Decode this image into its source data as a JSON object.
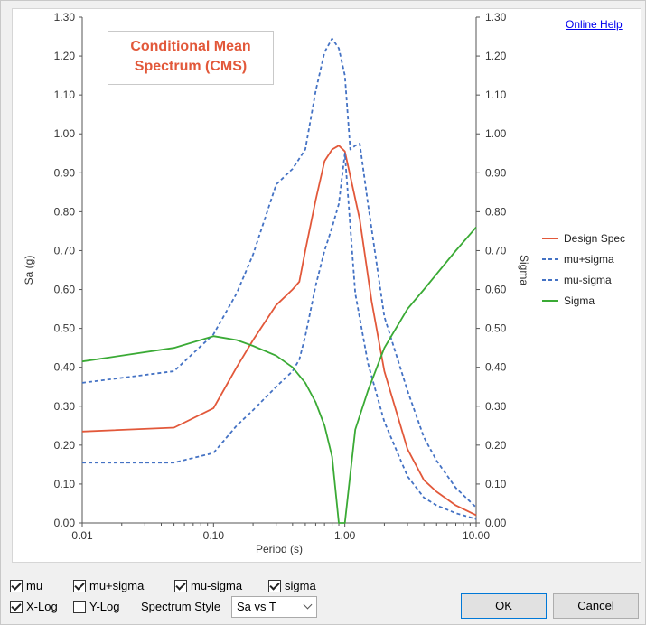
{
  "links": {
    "help": "Online Help"
  },
  "title_box": {
    "line1": "Conditional Mean",
    "line2": "Spectrum (CMS)"
  },
  "controls": {
    "row1": [
      {
        "label": "mu",
        "checked": true
      },
      {
        "label": "mu+sigma",
        "checked": true
      },
      {
        "label": "mu-sigma",
        "checked": true
      },
      {
        "label": "sigma",
        "checked": true
      }
    ],
    "xlog": {
      "label": "X-Log",
      "checked": true
    },
    "ylog": {
      "label": "Y-Log",
      "checked": false
    },
    "spectrum_style_label": "Spectrum Style",
    "spectrum_style_value": "Sa vs T",
    "ok": "OK",
    "cancel": "Cancel"
  },
  "chart_data": {
    "type": "line",
    "xlabel": "Period (s)",
    "ylabel": "Sa (g)",
    "y2label": "Sigma",
    "xscale": "log",
    "xlim": [
      0.01,
      10
    ],
    "ylim": [
      0,
      1.3
    ],
    "y2lim": [
      0,
      1.3
    ],
    "xticks": [
      "0.01",
      "0.10",
      "1.00",
      "10.00"
    ],
    "yticks": [
      "0.00",
      "0.10",
      "0.20",
      "0.30",
      "0.40",
      "0.50",
      "0.60",
      "0.70",
      "0.80",
      "0.90",
      "1.00",
      "1.10",
      "1.20",
      "1.30"
    ],
    "grid": false,
    "legend_position": "right",
    "series": [
      {
        "name": "Design Spec",
        "color": "#e2583a",
        "style": "solid",
        "x": [
          0.01,
          0.05,
          0.1,
          0.15,
          0.2,
          0.3,
          0.4,
          0.45,
          0.5,
          0.6,
          0.7,
          0.8,
          0.9,
          1.0,
          1.3,
          1.6,
          2.0,
          3.0,
          4.0,
          5.0,
          7.0,
          10.0
        ],
        "y": [
          0.235,
          0.245,
          0.295,
          0.4,
          0.47,
          0.56,
          0.6,
          0.62,
          0.7,
          0.83,
          0.93,
          0.96,
          0.97,
          0.955,
          0.78,
          0.57,
          0.39,
          0.19,
          0.11,
          0.08,
          0.045,
          0.02
        ]
      },
      {
        "name": "mu+sigma",
        "color": "#4472c4",
        "style": "dashed",
        "x": [
          0.01,
          0.05,
          0.1,
          0.15,
          0.2,
          0.3,
          0.4,
          0.5,
          0.6,
          0.7,
          0.8,
          0.9,
          1.0,
          1.1,
          1.2,
          1.3,
          1.5,
          2.0,
          3.0,
          4.0,
          5.0,
          7.0,
          10.0
        ],
        "y": [
          0.36,
          0.39,
          0.485,
          0.59,
          0.69,
          0.87,
          0.91,
          0.96,
          1.11,
          1.21,
          1.245,
          1.22,
          1.15,
          0.96,
          0.97,
          0.975,
          0.82,
          0.53,
          0.34,
          0.22,
          0.16,
          0.09,
          0.04
        ]
      },
      {
        "name": "mu-sigma",
        "color": "#4472c4",
        "style": "dashed",
        "x": [
          0.01,
          0.05,
          0.1,
          0.15,
          0.2,
          0.3,
          0.4,
          0.45,
          0.5,
          0.6,
          0.7,
          0.8,
          0.9,
          1.0,
          1.2,
          1.5,
          2.0,
          3.0,
          4.0,
          5.0,
          7.0,
          10.0
        ],
        "y": [
          0.155,
          0.155,
          0.18,
          0.25,
          0.29,
          0.35,
          0.39,
          0.42,
          0.48,
          0.61,
          0.7,
          0.76,
          0.82,
          0.95,
          0.59,
          0.41,
          0.26,
          0.12,
          0.065,
          0.045,
          0.025,
          0.01
        ]
      },
      {
        "name": "Sigma",
        "color": "#3aaa35",
        "style": "solid",
        "x": [
          0.01,
          0.05,
          0.1,
          0.15,
          0.2,
          0.3,
          0.4,
          0.5,
          0.6,
          0.7,
          0.8,
          0.9,
          1.0,
          1.2,
          1.5,
          2.0,
          3.0,
          4.0,
          5.0,
          7.0,
          10.0
        ],
        "y": [
          0.415,
          0.45,
          0.48,
          0.47,
          0.455,
          0.43,
          0.4,
          0.36,
          0.31,
          0.25,
          0.17,
          0.0,
          0.0,
          0.24,
          0.34,
          0.45,
          0.55,
          0.6,
          0.64,
          0.7,
          0.76
        ]
      }
    ]
  }
}
